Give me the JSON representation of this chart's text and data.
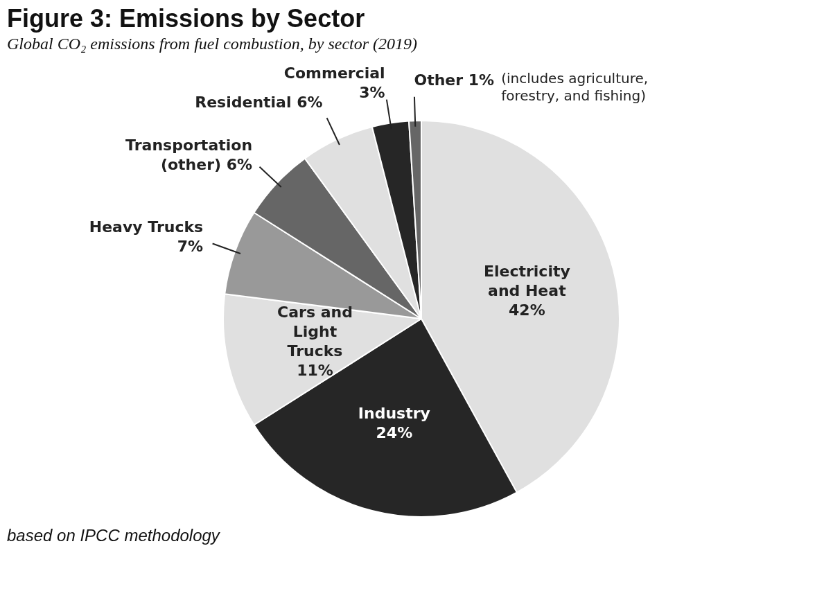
{
  "chart_data": {
    "type": "pie",
    "title": "Figure 3: Emissions by Sector",
    "subtitle": "Global CO₂ emissions from fuel combustion, by sector (2019)",
    "categories": [
      "Electricity and Heat",
      "Industry",
      "Cars and Light Trucks",
      "Heavy Trucks",
      "Transportation (other)",
      "Residential",
      "Commercial",
      "Other"
    ],
    "values": [
      42,
      24,
      11,
      7,
      6,
      6,
      3,
      1
    ],
    "value_labels": [
      "42%",
      "24%",
      "11%",
      "7%",
      "6%",
      "6%",
      "3%",
      "1%"
    ],
    "colors": [
      "#e0e0e0",
      "#262626",
      "#e0e0e0",
      "#999999",
      "#666666",
      "#e0e0e0",
      "#262626",
      "#666666"
    ],
    "legend": false,
    "annotations": [
      {
        "text": "(includes agriculture, forestry, and fishing)",
        "x": "Other"
      },
      "based on IPCC methodology"
    ]
  }
}
